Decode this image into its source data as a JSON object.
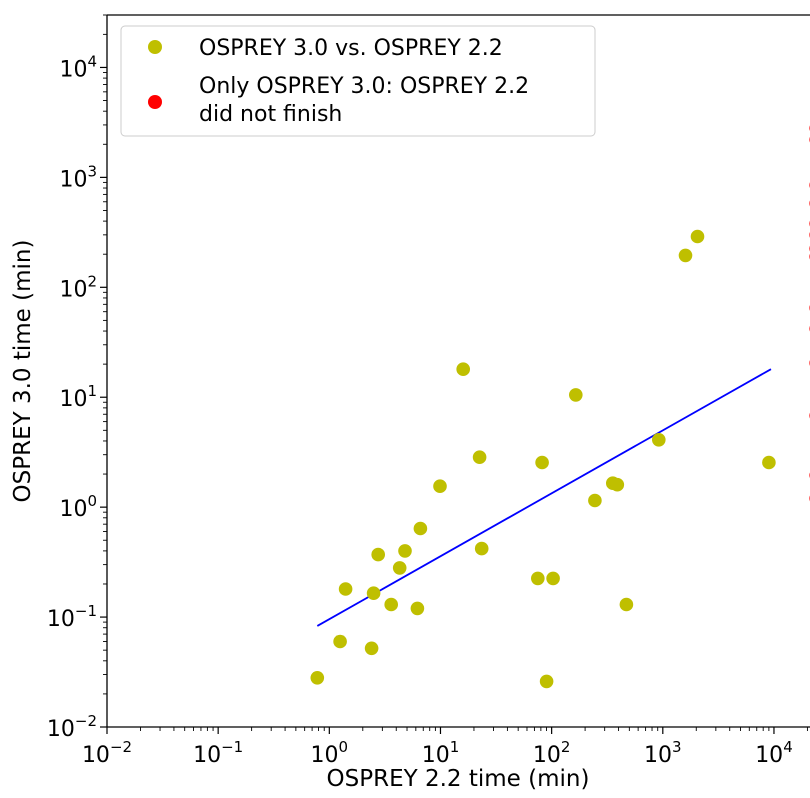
{
  "chart_data": {
    "type": "scatter",
    "xlabel": "OSPREY 2.2 time (min)",
    "ylabel": "OSPREY 3.0 time (min)",
    "x_scale": "log",
    "y_scale": "log",
    "xlim": [
      0.01,
      30000
    ],
    "ylim": [
      0.01,
      30000
    ],
    "x_ticks": [
      {
        "base": "10",
        "exp": "−2",
        "value": 0.01
      },
      {
        "base": "10",
        "exp": "−1",
        "value": 0.1
      },
      {
        "base": "10",
        "exp": "0",
        "value": 1
      },
      {
        "base": "10",
        "exp": "1",
        "value": 10
      },
      {
        "base": "10",
        "exp": "2",
        "value": 100
      },
      {
        "base": "10",
        "exp": "3",
        "value": 1000
      },
      {
        "base": "10",
        "exp": "4",
        "value": 10000
      }
    ],
    "y_ticks": [
      {
        "base": "10",
        "exp": "−2",
        "value": 0.01
      },
      {
        "base": "10",
        "exp": "−1",
        "value": 0.1
      },
      {
        "base": "10",
        "exp": "0",
        "value": 1
      },
      {
        "base": "10",
        "exp": "1",
        "value": 10
      },
      {
        "base": "10",
        "exp": "2",
        "value": 100
      },
      {
        "base": "10",
        "exp": "3",
        "value": 1000
      },
      {
        "base": "10",
        "exp": "4",
        "value": 10000
      }
    ],
    "legend": {
      "position": "top-left",
      "entries": [
        {
          "lines": [
            "OSPREY 3.0 vs. OSPREY 2.2"
          ],
          "color": "#bfbf00"
        },
        {
          "lines": [
            "Only OSPREY 3.0: OSPREY 2.2",
            "did not finish"
          ],
          "color": "#ff0000"
        }
      ]
    },
    "series": [
      {
        "color": "#bfbf00",
        "points": [
          {
            "x": 0.78,
            "y": 0.028
          },
          {
            "x": 1.25,
            "y": 0.06
          },
          {
            "x": 1.4,
            "y": 0.18
          },
          {
            "x": 2.4,
            "y": 0.052
          },
          {
            "x": 2.5,
            "y": 0.165
          },
          {
            "x": 2.75,
            "y": 0.37
          },
          {
            "x": 3.6,
            "y": 0.13
          },
          {
            "x": 4.3,
            "y": 0.28
          },
          {
            "x": 4.8,
            "y": 0.4
          },
          {
            "x": 6.2,
            "y": 0.12
          },
          {
            "x": 6.6,
            "y": 0.64
          },
          {
            "x": 9.9,
            "y": 1.55
          },
          {
            "x": 16,
            "y": 18
          },
          {
            "x": 22.5,
            "y": 2.85
          },
          {
            "x": 23.5,
            "y": 0.42
          },
          {
            "x": 75,
            "y": 0.225
          },
          {
            "x": 82,
            "y": 2.55
          },
          {
            "x": 90,
            "y": 0.026
          },
          {
            "x": 103,
            "y": 0.225
          },
          {
            "x": 165,
            "y": 10.5
          },
          {
            "x": 245,
            "y": 1.15
          },
          {
            "x": 355,
            "y": 1.65
          },
          {
            "x": 390,
            "y": 1.6
          },
          {
            "x": 470,
            "y": 0.13
          },
          {
            "x": 920,
            "y": 4.1
          },
          {
            "x": 1600,
            "y": 195
          },
          {
            "x": 2050,
            "y": 290
          },
          {
            "x": 9000,
            "y": 2.55
          }
        ]
      },
      {
        "color": "#ff0000",
        "points": [
          {
            "x": 24000,
            "y": 2800
          },
          {
            "x": 24000,
            "y": 2200
          },
          {
            "x": 24000,
            "y": 850
          },
          {
            "x": 24000,
            "y": 580
          },
          {
            "x": 24000,
            "y": 380
          },
          {
            "x": 24000,
            "y": 300
          },
          {
            "x": 24000,
            "y": 225
          },
          {
            "x": 24000,
            "y": 190
          },
          {
            "x": 24000,
            "y": 65
          },
          {
            "x": 24000,
            "y": 42
          },
          {
            "x": 24000,
            "y": 20.5
          },
          {
            "x": 24000,
            "y": 6.8
          },
          {
            "x": 24000,
            "y": 1.95
          },
          {
            "x": 24000,
            "y": 1.2
          }
        ]
      }
    ],
    "fit_line": {
      "color": "#0000ff",
      "start": {
        "x": 0.78,
        "y": 0.083
      },
      "end": {
        "x": 9400,
        "y": 18
      }
    }
  }
}
